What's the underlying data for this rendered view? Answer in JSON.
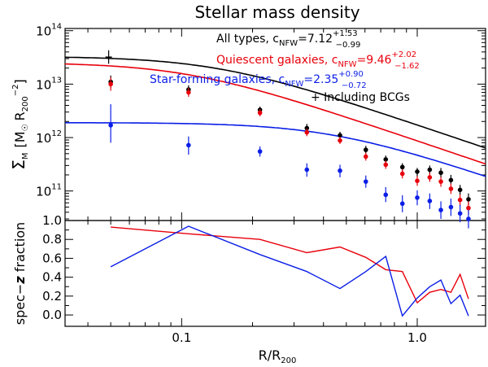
{
  "chart_data": {
    "type": "line",
    "title": "Stellar mass density",
    "xlabel": {
      "main": "R/R",
      "sub": "200"
    },
    "xaxis": {
      "scale": "log",
      "range": [
        0.032,
        1.95
      ],
      "ticks": [
        0.1,
        1.0
      ],
      "tick_labels": [
        "0.1",
        "1.0"
      ]
    },
    "top_panel": {
      "ylabel": {
        "sigma": "Σ",
        "sub": "M",
        "units_open": "[M",
        "sun": "☉",
        "units_R": "R",
        "units_sub": "200",
        "units_exp": "−2",
        "units_close": "]"
      },
      "yaxis": {
        "scale": "log",
        "range": [
          28000000000.0,
          110000000000000.0
        ],
        "ticks": [
          100000000000.0,
          1000000000000.0,
          10000000000000.0,
          100000000000000.0
        ],
        "tick_labels": [
          {
            "base": "10",
            "exp": "11"
          },
          {
            "base": "10",
            "exp": "12"
          },
          {
            "base": "10",
            "exp": "13"
          },
          {
            "base": "10",
            "exp": "14"
          }
        ]
      },
      "series": [
        {
          "name": "All types",
          "color": "#000000",
          "legend": {
            "text": "All types, c",
            "sub": "NFW",
            "value": "=7.12",
            "plus": "+1.53",
            "minus": "−0.99"
          },
          "points": [
            {
              "x": 0.05,
              "y": 11000000000000.0,
              "lo": 8500000000000.0,
              "hi": 14500000000000.0
            },
            {
              "x": 0.107,
              "y": 7900000000000.0,
              "lo": 6600000000000.0,
              "hi": 9500000000000.0
            },
            {
              "x": 0.215,
              "y": 3300000000000.0,
              "lo": 2900000000000.0,
              "hi": 3800000000000.0
            },
            {
              "x": 0.34,
              "y": 1500000000000.0,
              "lo": 1280000000000.0,
              "hi": 1800000000000.0
            },
            {
              "x": 0.47,
              "y": 1100000000000.0,
              "lo": 960000000000.0,
              "hi": 1280000000000.0
            },
            {
              "x": 0.605,
              "y": 590000000000.0,
              "lo": 500000000000.0,
              "hi": 700000000000.0
            },
            {
              "x": 0.735,
              "y": 390000000000.0,
              "lo": 330000000000.0,
              "hi": 460000000000.0
            },
            {
              "x": 0.865,
              "y": 280000000000.0,
              "lo": 230000000000.0,
              "hi": 330000000000.0
            },
            {
              "x": 1.0,
              "y": 230000000000.0,
              "lo": 185000000000.0,
              "hi": 270000000000.0
            },
            {
              "x": 1.13,
              "y": 250000000000.0,
              "lo": 210000000000.0,
              "hi": 300000000000.0
            },
            {
              "x": 1.26,
              "y": 220000000000.0,
              "lo": 175000000000.0,
              "hi": 270000000000.0
            },
            {
              "x": 1.39,
              "y": 160000000000.0,
              "lo": 130000000000.0,
              "hi": 200000000000.0
            },
            {
              "x": 1.52,
              "y": 105000000000.0,
              "lo": 85000000000.0,
              "hi": 130000000000.0
            },
            {
              "x": 1.65,
              "y": 70000000000.0,
              "lo": 54000000000.0,
              "hi": 90000000000.0
            }
          ],
          "fit": {
            "A": 32000000000000.0,
            "c": 7.12
          }
        },
        {
          "name": "Quiescent galaxies",
          "color": "#e8000b",
          "legend": {
            "text": "Quiescent galaxies, c",
            "sub": "NFW",
            "value": "=9.46",
            "plus": "+2.02",
            "minus": "−1.62"
          },
          "points": [
            {
              "x": 0.05,
              "y": 10000000000000.0,
              "lo": 7500000000000.0,
              "hi": 13500000000000.0
            },
            {
              "x": 0.107,
              "y": 7000000000000.0,
              "lo": 5800000000000.0,
              "hi": 8500000000000.0
            },
            {
              "x": 0.215,
              "y": 2900000000000.0,
              "lo": 2500000000000.0,
              "hi": 3400000000000.0
            },
            {
              "x": 0.34,
              "y": 1250000000000.0,
              "lo": 1060000000000.0,
              "hi": 1480000000000.0
            },
            {
              "x": 0.47,
              "y": 880000000000.0,
              "lo": 760000000000.0,
              "hi": 1020000000000.0
            },
            {
              "x": 0.605,
              "y": 440000000000.0,
              "lo": 370000000000.0,
              "hi": 520000000000.0
            },
            {
              "x": 0.735,
              "y": 310000000000.0,
              "lo": 260000000000.0,
              "hi": 370000000000.0
            },
            {
              "x": 0.865,
              "y": 210000000000.0,
              "lo": 172000000000.0,
              "hi": 255000000000.0
            },
            {
              "x": 1.0,
              "y": 155000000000.0,
              "lo": 125000000000.0,
              "hi": 190000000000.0
            },
            {
              "x": 1.13,
              "y": 180000000000.0,
              "lo": 148000000000.0,
              "hi": 220000000000.0
            },
            {
              "x": 1.26,
              "y": 150000000000.0,
              "lo": 120000000000.0,
              "hi": 185000000000.0
            },
            {
              "x": 1.39,
              "y": 110000000000.0,
              "lo": 88000000000.0,
              "hi": 138000000000.0
            },
            {
              "x": 1.52,
              "y": 68000000000.0,
              "lo": 53000000000.0,
              "hi": 86000000000.0
            },
            {
              "x": 1.65,
              "y": 48000000000.0,
              "lo": 36000000000.0,
              "hi": 64000000000.0
            }
          ],
          "fit": {
            "A": 24000000000000.0,
            "c": 9.46
          }
        },
        {
          "name": "Star-forming galaxies",
          "color": "#0a1ee6",
          "legend": {
            "text": "Star-forming galaxies, c",
            "sub": "NFW",
            "value": "=2.35",
            "plus": "+0.90",
            "minus": "−0.72"
          },
          "points": [
            {
              "x": 0.05,
              "y": 1700000000000.0,
              "lo": 800000000000.0,
              "hi": 4200000000000.0
            },
            {
              "x": 0.107,
              "y": 720000000000.0,
              "lo": 480000000000.0,
              "hi": 1050000000000.0
            },
            {
              "x": 0.215,
              "y": 550000000000.0,
              "lo": 440000000000.0,
              "hi": 680000000000.0
            },
            {
              "x": 0.34,
              "y": 250000000000.0,
              "lo": 185000000000.0,
              "hi": 330000000000.0
            },
            {
              "x": 0.47,
              "y": 240000000000.0,
              "lo": 180000000000.0,
              "hi": 310000000000.0
            },
            {
              "x": 0.605,
              "y": 150000000000.0,
              "lo": 115000000000.0,
              "hi": 195000000000.0
            },
            {
              "x": 0.735,
              "y": 85000000000.0,
              "lo": 62000000000.0,
              "hi": 118000000000.0
            },
            {
              "x": 0.865,
              "y": 58000000000.0,
              "lo": 40000000000.0,
              "hi": 83000000000.0
            },
            {
              "x": 1.0,
              "y": 75000000000.0,
              "lo": 54000000000.0,
              "hi": 103000000000.0
            },
            {
              "x": 1.13,
              "y": 65000000000.0,
              "lo": 46000000000.0,
              "hi": 90000000000.0
            },
            {
              "x": 1.26,
              "y": 44000000000.0,
              "lo": 30000000000.0,
              "hi": 64000000000.0
            },
            {
              "x": 1.39,
              "y": 50000000000.0,
              "lo": 34000000000.0,
              "hi": 72000000000.0
            },
            {
              "x": 1.52,
              "y": 38000000000.0,
              "lo": 26000000000.0,
              "hi": 55000000000.0
            },
            {
              "x": 1.65,
              "y": 30000000000.0,
              "lo": 20000000000.0,
              "hi": 44000000000.0
            }
          ],
          "fit": {
            "A": 1900000000000.0,
            "c": 2.35
          }
        }
      ],
      "bcg_points": [
        {
          "x": 0.049,
          "y": 32000000000000.0,
          "lo": 24000000000000.0,
          "hi": 43000000000000.0
        }
      ],
      "bcg_legend": "+ Including BCGs"
    },
    "bottom_panel": {
      "ylabel": {
        "text": "spec−",
        "bold": "z",
        "rest": " fraction"
      },
      "yaxis": {
        "range": [
          -0.12,
          1.0
        ],
        "ticks": [
          0.0,
          0.2,
          0.4,
          0.6,
          0.8,
          1.0
        ],
        "tick_labels": [
          "0.0",
          "0.2",
          "0.4",
          "0.6",
          "0.8",
          "1.0"
        ]
      },
      "series": [
        {
          "name": "Quiescent galaxies",
          "color": "#e8000b",
          "x": [
            0.05,
            0.107,
            0.215,
            0.34,
            0.47,
            0.605,
            0.735,
            0.865,
            1.0,
            1.13,
            1.26,
            1.39,
            1.52,
            1.65
          ],
          "y": [
            0.93,
            0.86,
            0.8,
            0.66,
            0.72,
            0.61,
            0.48,
            0.46,
            0.13,
            0.24,
            0.27,
            0.24,
            0.43,
            0.17
          ]
        },
        {
          "name": "Star-forming galaxies",
          "color": "#0a1ee6",
          "x": [
            0.05,
            0.107,
            0.215,
            0.34,
            0.47,
            0.605,
            0.735,
            0.865,
            1.0,
            1.13,
            1.26,
            1.39,
            1.52,
            1.65
          ],
          "y": [
            0.51,
            0.94,
            0.64,
            0.46,
            0.28,
            0.46,
            0.62,
            -0.01,
            0.18,
            0.3,
            0.37,
            0.12,
            0.21,
            -0.01
          ]
        }
      ]
    }
  }
}
